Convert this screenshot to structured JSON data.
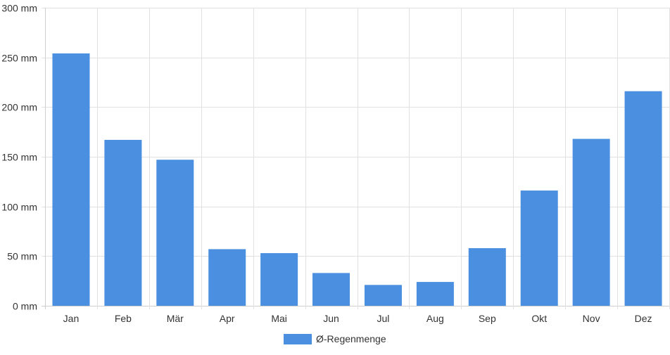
{
  "chart_data": {
    "type": "bar",
    "categories": [
      "Jan",
      "Feb",
      "Mär",
      "Apr",
      "Mai",
      "Jun",
      "Jul",
      "Aug",
      "Sep",
      "Okt",
      "Nov",
      "Dez"
    ],
    "series": [
      {
        "name": "Ø-Regenmenge",
        "color": "#4a8fe0",
        "values": [
          254,
          167,
          147,
          57,
          53,
          33,
          21,
          24,
          58,
          116,
          168,
          216
        ]
      }
    ],
    "ylim": [
      0,
      300
    ],
    "yticks": [
      0,
      50,
      100,
      150,
      200,
      250,
      300
    ],
    "y_unit": "mm",
    "grid": true,
    "legend_position": "bottom-center"
  }
}
